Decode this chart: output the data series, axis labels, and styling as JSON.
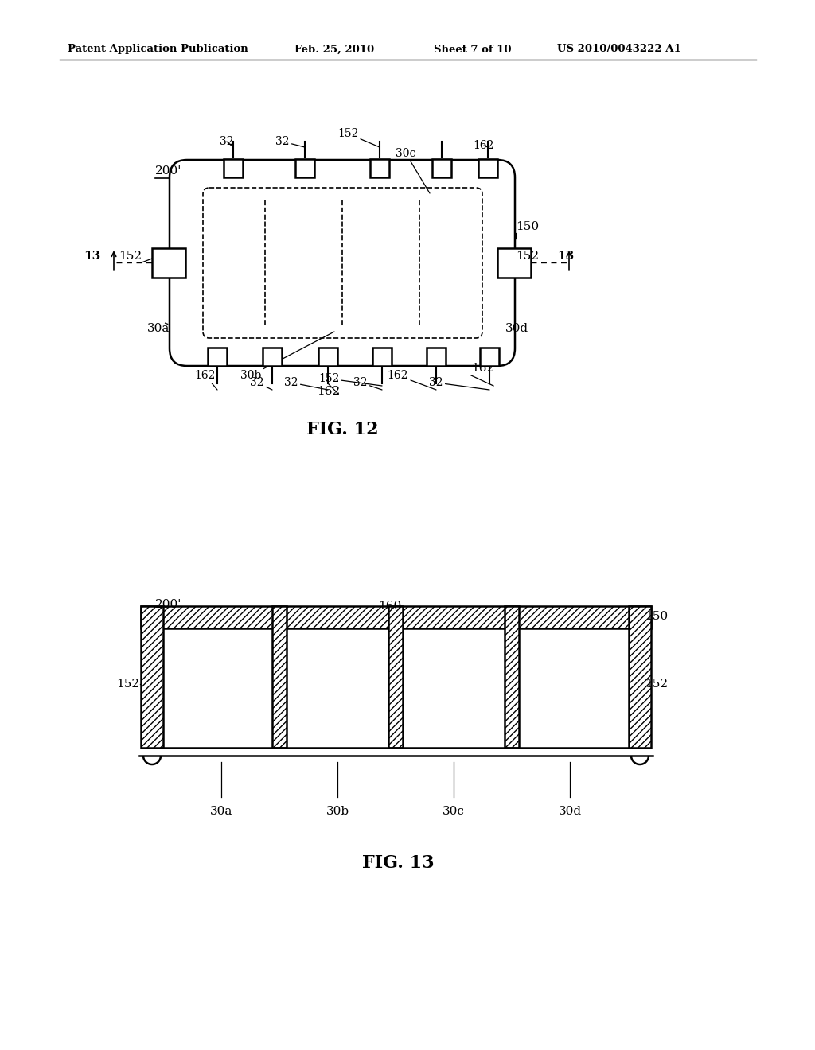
{
  "bg_color": "#ffffff",
  "line_color": "#000000",
  "header_text": "Patent Application Publication",
  "header_date": "Feb. 25, 2010",
  "header_sheet": "Sheet 7 of 10",
  "header_patent": "US 2010/0043222 A1"
}
